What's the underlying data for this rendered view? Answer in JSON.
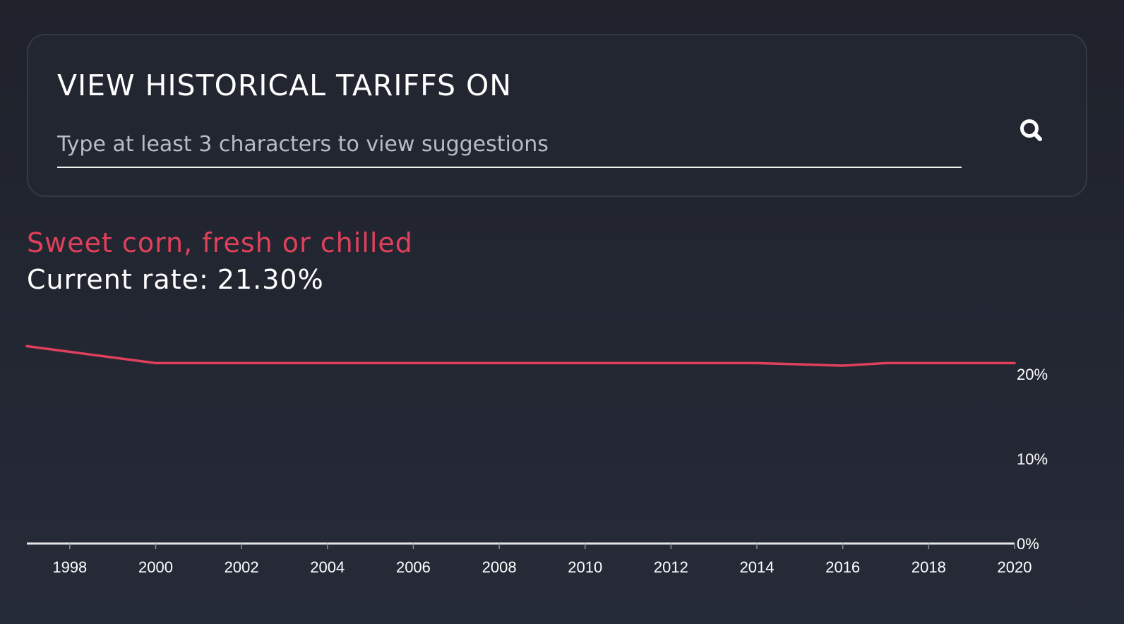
{
  "search": {
    "title": "VIEW HISTORICAL TARIFFS ON",
    "placeholder": "Type at least 3 characters to view suggestions",
    "value": "",
    "button_icon": "search-icon"
  },
  "product": {
    "name": "Sweet corn, fresh or chilled",
    "current_rate_label": "Current rate:",
    "current_rate_value": "21.30%"
  },
  "colors": {
    "accent": "#e0405c",
    "background": "#252a36",
    "panel_border": "#343946",
    "axis": "#e6e6e6",
    "text": "#ffffff"
  },
  "chart_data": {
    "type": "line",
    "title": "",
    "xlabel": "",
    "ylabel": "",
    "x_ticks": [
      "1998",
      "2000",
      "2002",
      "2004",
      "2006",
      "2008",
      "2010",
      "2012",
      "2014",
      "2016",
      "2018",
      "2020"
    ],
    "y_ticks": [
      "0%",
      "10%",
      "20%"
    ],
    "xlim": [
      1997,
      2020
    ],
    "ylim": [
      0,
      25
    ],
    "grid": false,
    "y_axis_position": "right",
    "series": [
      {
        "color": "#e0405c",
        "points": [
          {
            "x": 1997,
            "y": 23.3
          },
          {
            "x": 2000,
            "y": 21.3
          },
          {
            "x": 2014,
            "y": 21.3
          },
          {
            "x": 2016,
            "y": 21.0
          },
          {
            "x": 2017,
            "y": 21.3
          },
          {
            "x": 2020,
            "y": 21.3
          }
        ]
      }
    ]
  }
}
